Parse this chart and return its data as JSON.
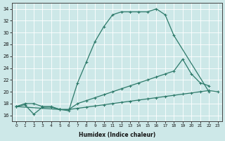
{
  "xlabel": "Humidex (Indice chaleur)",
  "xlim": [
    -0.5,
    23.5
  ],
  "ylim": [
    15,
    35
  ],
  "yticks": [
    16,
    18,
    20,
    22,
    24,
    26,
    28,
    30,
    32,
    34
  ],
  "xticks": [
    0,
    1,
    2,
    3,
    4,
    5,
    6,
    7,
    8,
    9,
    10,
    11,
    12,
    13,
    14,
    15,
    16,
    17,
    18,
    19,
    20,
    21,
    22,
    23
  ],
  "line_color": "#2d7a6a",
  "bg_color": "#cde8e8",
  "line1_x": [
    0,
    1,
    2,
    3,
    4,
    5,
    6,
    7,
    8,
    9,
    10,
    11,
    12,
    13,
    14,
    15,
    16,
    17,
    18,
    22
  ],
  "line1_y": [
    17.5,
    18.0,
    18.0,
    17.5,
    17.5,
    17.0,
    16.8,
    21.5,
    25.0,
    28.5,
    31.0,
    33.0,
    33.5,
    33.5,
    33.5,
    33.5,
    34.0,
    33.0,
    29.5,
    20.0
  ],
  "line2_x": [
    0,
    5,
    6,
    7,
    8,
    9,
    10,
    11,
    12,
    13,
    14,
    15,
    16,
    17,
    18,
    19,
    20,
    21,
    22
  ],
  "line2_y": [
    17.5,
    17.0,
    17.0,
    18.0,
    18.5,
    19.0,
    19.5,
    20.0,
    20.5,
    21.0,
    21.5,
    22.0,
    22.5,
    23.0,
    23.5,
    25.5,
    23.0,
    21.5,
    21.0
  ],
  "line3_x": [
    0,
    1,
    2,
    3,
    4,
    5,
    6,
    7,
    8,
    9,
    10,
    11,
    12,
    13,
    14,
    15,
    16,
    17,
    18,
    19,
    20,
    21,
    22,
    23
  ],
  "line3_y": [
    17.5,
    17.8,
    16.2,
    17.4,
    17.4,
    17.0,
    17.0,
    17.2,
    17.4,
    17.6,
    17.8,
    18.0,
    18.2,
    18.4,
    18.6,
    18.8,
    19.0,
    19.2,
    19.4,
    19.6,
    19.8,
    20.0,
    20.2,
    20.0
  ]
}
